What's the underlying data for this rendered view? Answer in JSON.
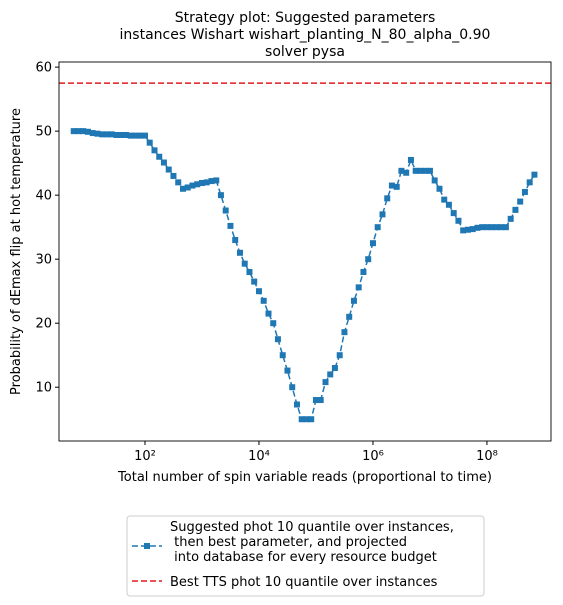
{
  "chart_data": {
    "type": "line",
    "title": [
      "Strategy plot: Suggested parameters",
      "instances Wishart wishart_planting_N_80_alpha_0.90",
      "solver pysa"
    ],
    "xlabel": "Total number of spin variable reads (proportional to time)",
    "ylabel": "Probability of dEmax flip at hot temperature",
    "xscale": "log",
    "xlim": [
      3.1,
      1330000000.0
    ],
    "ylim": [
      1.6,
      60.8
    ],
    "xticks": [
      {
        "value": 100,
        "label": "10²"
      },
      {
        "value": 10000,
        "label": "10⁴"
      },
      {
        "value": 1000000,
        "label": "10⁶"
      },
      {
        "value": 100000000,
        "label": "10⁸"
      }
    ],
    "yticks": [
      10,
      20,
      30,
      40,
      50,
      60
    ],
    "x": [
      5.62,
      6.81,
      8.25,
      10,
      12.1,
      14.7,
      17.8,
      21.5,
      26.1,
      31.6,
      38.3,
      46.4,
      56.2,
      68.1,
      82.5,
      100.0,
      121.0,
      147.0,
      178.0,
      215.0,
      261.0,
      316.0,
      383.0,
      464.0,
      562.0,
      681.0,
      825.0,
      1000.0,
      1210.0,
      1470.0,
      1780.0,
      2150.0,
      2610.0,
      3160.0,
      3830.0,
      4640.0,
      5620.0,
      6810.0,
      8250.0,
      10000.0,
      12100.0,
      14700.0,
      17800.0,
      21500.0,
      26100.0,
      31600.0,
      38300.0,
      46400.0,
      56200.0,
      68100.0,
      82500.0,
      100000.0,
      121000.0,
      147000.0,
      178000.0,
      215000.0,
      261000.0,
      316000.0,
      383000.0,
      464000.0,
      562000.0,
      681000.0,
      825000.0,
      1000000.0,
      1210000.0,
      1470000.0,
      1780000.0,
      2150000.0,
      2610000.0,
      3160000.0,
      3830000.0,
      4640000.0,
      5620000.0,
      6810000.0,
      8250000.0,
      10000000.0,
      12100000.0,
      14700000.0,
      17800000.0,
      21500000.0,
      26100000.0,
      31600000.0,
      38300000.0,
      46400000.0,
      56200000.0,
      68100000.0,
      82500000.0,
      100000000.0,
      121000000.0,
      147000000.0,
      178000000.0,
      215000000.0,
      261000000.0,
      316000000.0,
      383000000.0,
      464000000.0,
      562000000.0,
      681000000.0
    ],
    "series": [
      {
        "name": "Suggested phot 10 quantile over instances,\n then best parameter, and projected\n into database for every resource budget",
        "color": "#1f77b4",
        "linestyle": "dashed",
        "marker": "square",
        "values": [
          50,
          50,
          50,
          49.9,
          49.7,
          49.6,
          49.5,
          49.5,
          49.5,
          49.4,
          49.4,
          49.4,
          49.3,
          49.3,
          49.3,
          49.3,
          48.2,
          47,
          46,
          45.1,
          44,
          43,
          42,
          41,
          41.2,
          41.5,
          41.7,
          41.9,
          42,
          42.2,
          42.3,
          40,
          37.6,
          35.2,
          33,
          31,
          29.3,
          28,
          26.5,
          25,
          23.5,
          21.5,
          20,
          17.5,
          15,
          12.6,
          10,
          7.3,
          5,
          5,
          5,
          8,
          8,
          10.8,
          12,
          13,
          15,
          18.6,
          21,
          23.5,
          25.6,
          28,
          30,
          32.5,
          35,
          37,
          39.5,
          41.5,
          41.3,
          43.8,
          43.5,
          45.5,
          43.8,
          43.8,
          43.8,
          43.8,
          42.3,
          41,
          39.3,
          38.5,
          37.2,
          36,
          34.5,
          34.6,
          34.7,
          34.9,
          35,
          35,
          35,
          35,
          35,
          35,
          36.3,
          37.7,
          39,
          40.5,
          42,
          43.2
        ]
      }
    ],
    "hlines": [
      {
        "name": "Best TTS phot 10 quantile over instances",
        "color": "#e41a1c",
        "linestyle": "dashed",
        "value": 57.5
      }
    ],
    "legend": "lower center outside"
  }
}
